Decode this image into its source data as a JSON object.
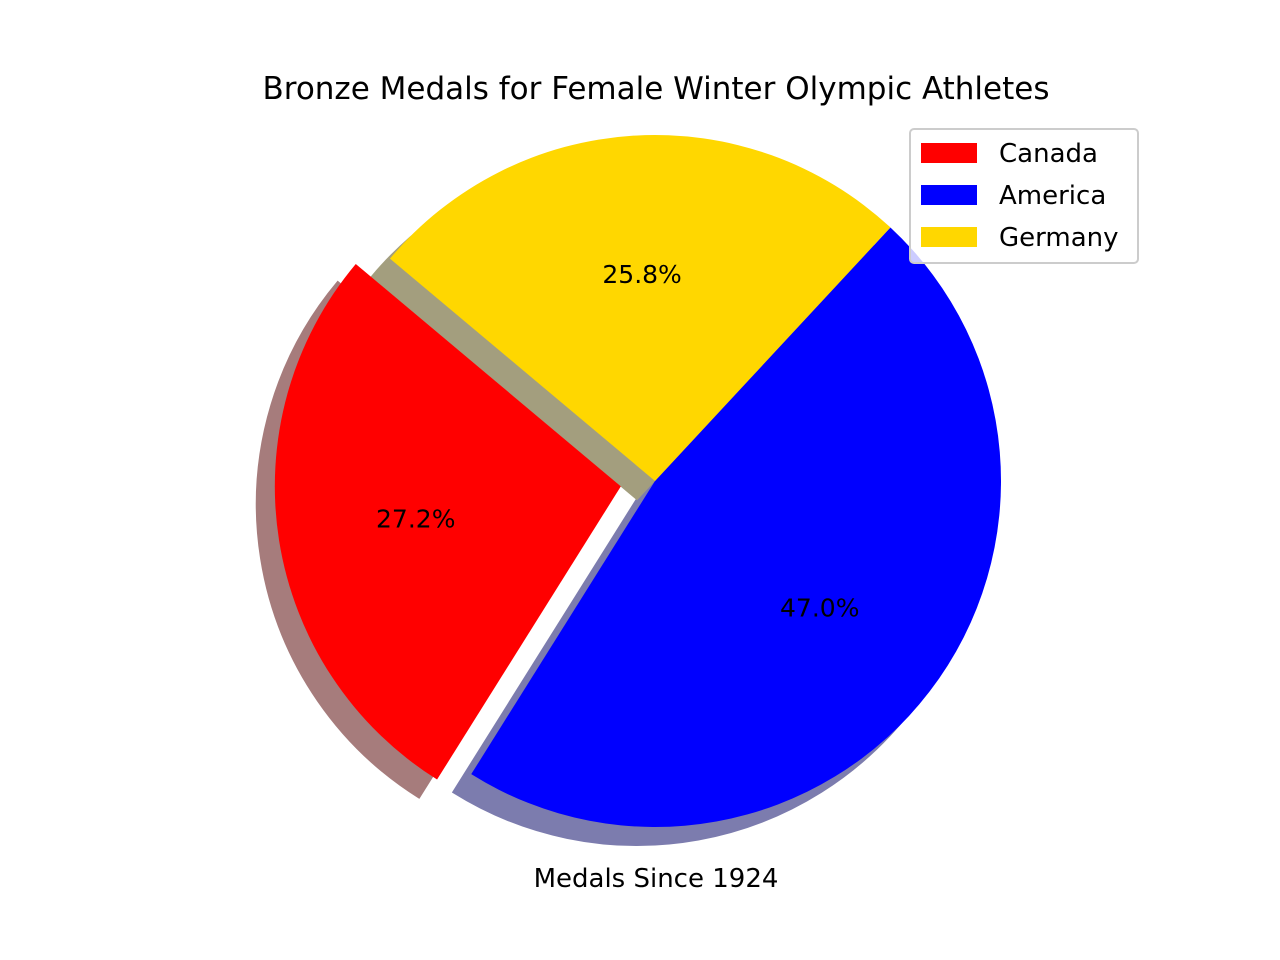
{
  "chart_data": {
    "type": "pie",
    "title": "Bronze Medals for Female Winter Olympic Athletes",
    "xlabel": "Medals Since 1924",
    "legend_position": "top-right",
    "shadow": true,
    "slices": [
      {
        "label": "Canada",
        "percent": 27.2,
        "pct_label": "27.2%",
        "color": "#ff0000",
        "shadow_color": "#a67c7c",
        "exploded": true
      },
      {
        "label": "America",
        "percent": 47.0,
        "pct_label": "47.0%",
        "color": "#0000ff",
        "shadow_color": "#7c7cae",
        "exploded": false
      },
      {
        "label": "Germany",
        "percent": 25.8,
        "pct_label": "25.8%",
        "color": "#ffd700",
        "shadow_color": "#a39e7e",
        "exploded": false
      }
    ]
  }
}
